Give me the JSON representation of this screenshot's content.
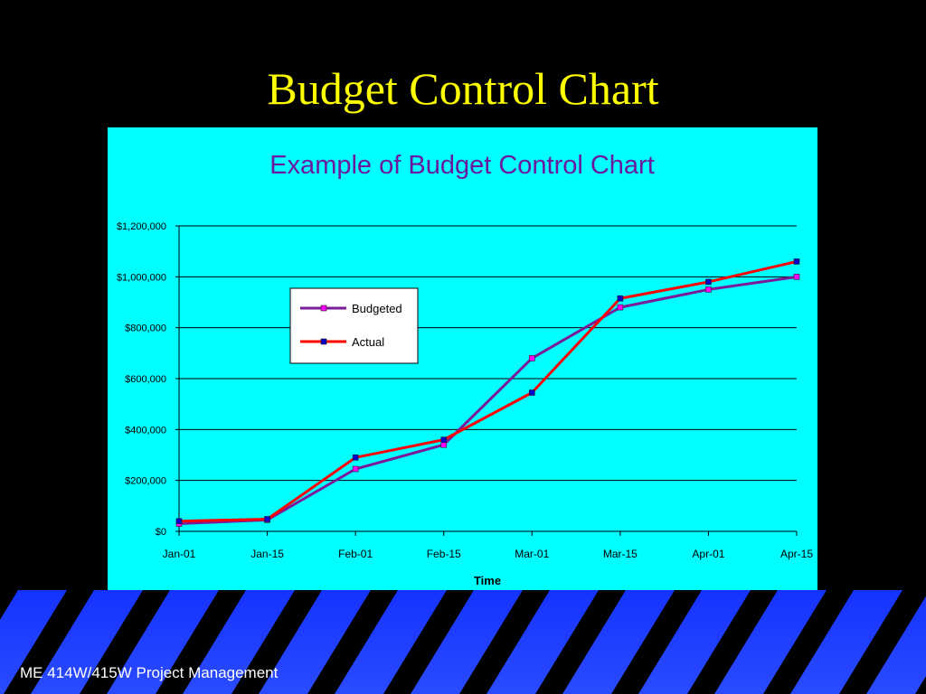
{
  "slide": {
    "title": "Budget Control Chart",
    "footer": "ME 414W/415W Project Management"
  },
  "colors": {
    "background": "#000000",
    "title": "#ffff00",
    "chart_bg": "#00ffff",
    "chart_title": "#6a1aa0",
    "budgeted_line": "#7a1c9a",
    "budgeted_marker": "#ff00ff",
    "actual_line": "#ff0000",
    "actual_marker": "#0000cc",
    "footer_stripe": "#1e3cff"
  },
  "chart_data": {
    "type": "line",
    "title": "Example of Budget Control Chart",
    "xlabel": "Time",
    "ylabel": "",
    "categories": [
      "Jan-01",
      "Jan-15",
      "Feb-01",
      "Feb-15",
      "Mar-01",
      "Mar-15",
      "Apr-01",
      "Apr-15"
    ],
    "ylim": [
      0,
      1200000
    ],
    "yticks": [
      0,
      200000,
      400000,
      600000,
      800000,
      1000000,
      1200000
    ],
    "ytick_labels": [
      "$0",
      "$200,000",
      "$400,000",
      "$600,000",
      "$800,000",
      "$1,000,000",
      "$1,200,000"
    ],
    "grid": true,
    "legend": "upper-left",
    "series": [
      {
        "name": "Budgeted",
        "values": [
          30000,
          45000,
          245000,
          340000,
          680000,
          880000,
          950000,
          1000000
        ]
      },
      {
        "name": "Actual",
        "values": [
          40000,
          48000,
          290000,
          360000,
          545000,
          915000,
          980000,
          1060000
        ]
      }
    ]
  }
}
